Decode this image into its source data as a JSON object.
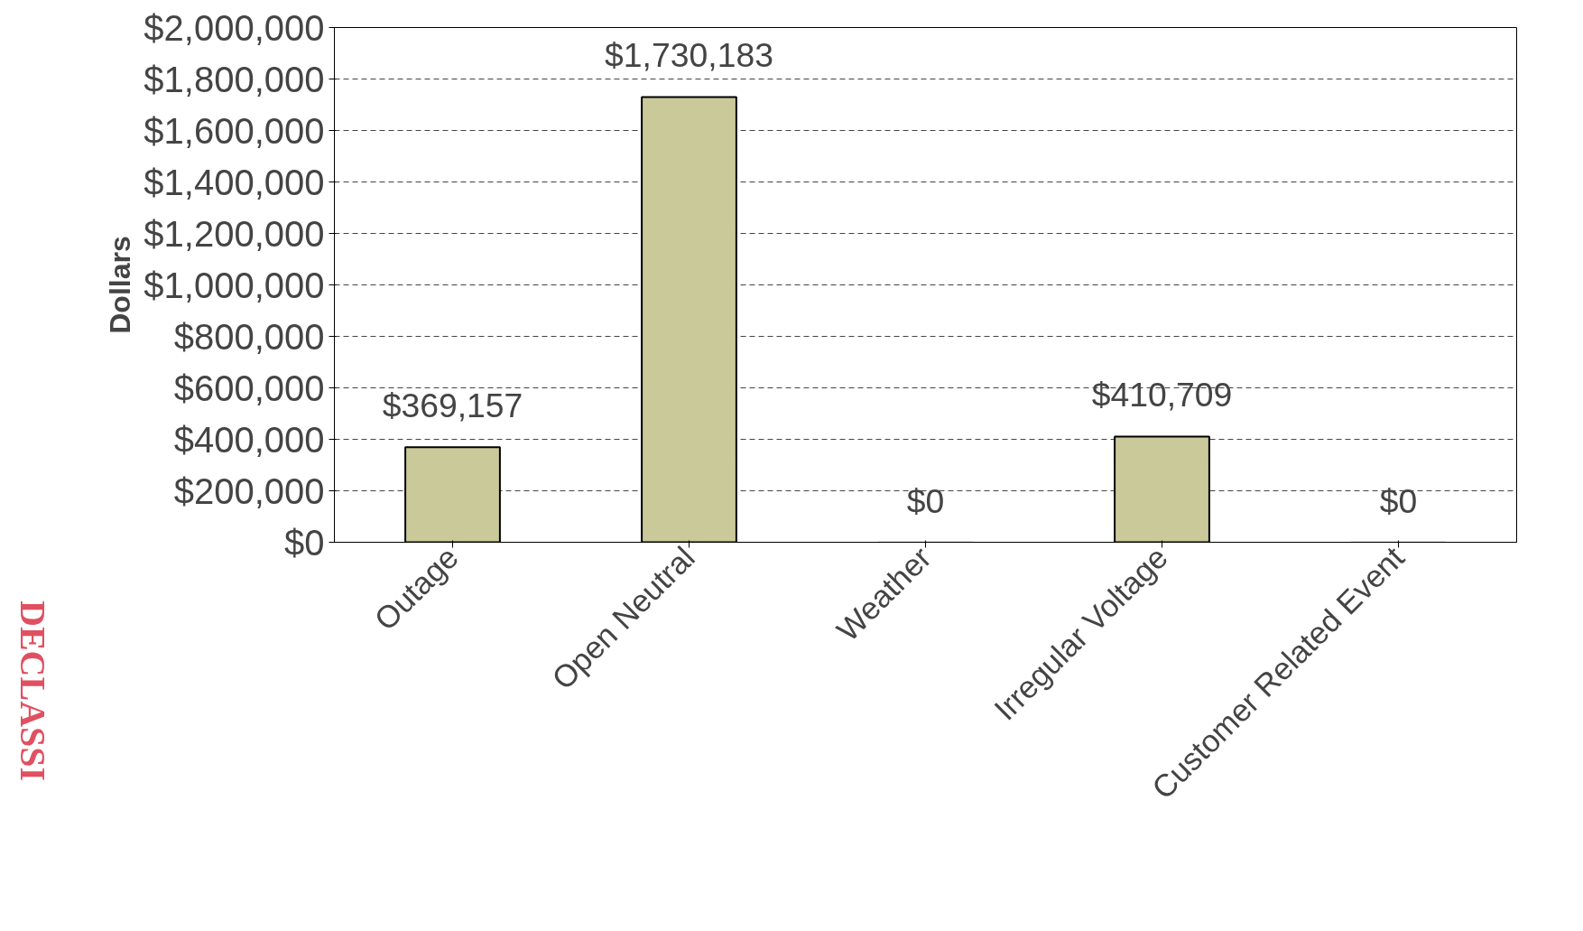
{
  "chart_data": {
    "type": "bar",
    "ylabel": "Dollars",
    "categories": [
      "Outage",
      "Open Neutral",
      "Weather",
      "Irregular Voltage",
      "Customer Related Event"
    ],
    "values": [
      369157,
      1730183,
      0,
      410709,
      0
    ],
    "value_labels": [
      "$369,157",
      "$1,730,183",
      "$0",
      "$410,709",
      "$0"
    ],
    "color": "#c9c99a",
    "ylim": [
      0,
      2000000
    ],
    "yticks": [
      {
        "value": 0,
        "label": "$0"
      },
      {
        "value": 200000,
        "label": "$200,000"
      },
      {
        "value": 400000,
        "label": "$400,000"
      },
      {
        "value": 600000,
        "label": "$600,000"
      },
      {
        "value": 800000,
        "label": "$800,000"
      },
      {
        "value": 1000000,
        "label": "$1,000,000"
      },
      {
        "value": 1200000,
        "label": "$1,200,000"
      },
      {
        "value": 1400000,
        "label": "$1,400,000"
      },
      {
        "value": 1600000,
        "label": "$1,600,000"
      },
      {
        "value": 1800000,
        "label": "$1,800,000"
      },
      {
        "value": 2000000,
        "label": "$2,000,000"
      }
    ],
    "grid": "y",
    "annotations": [
      "DECLASSI"
    ]
  }
}
